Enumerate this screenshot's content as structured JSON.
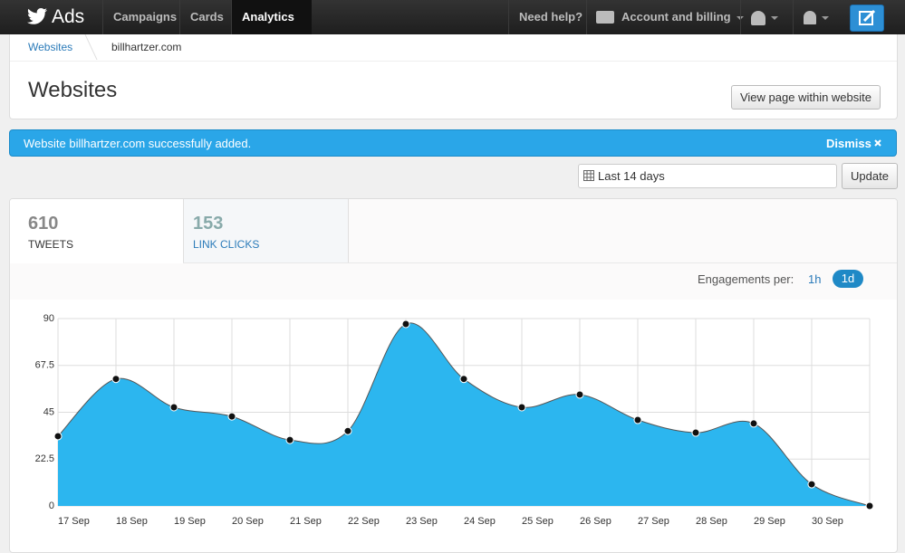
{
  "nav": {
    "brand": "Ads",
    "items": [
      "Campaigns",
      "Cards",
      "Analytics"
    ],
    "help": "Need help?",
    "account": "Account and billing"
  },
  "breadcrumb": [
    "Websites",
    "billhartzer.com"
  ],
  "header": {
    "title": "Websites",
    "button": "View page within website"
  },
  "alert": {
    "message": "Website billhartzer.com successfully added.",
    "dismiss": "Dismiss"
  },
  "date": {
    "range": "Last 14 days",
    "button": "Update"
  },
  "tabs": [
    {
      "value": 610,
      "label": "TWEETS"
    },
    {
      "value": 153,
      "label": "LINK CLICKS"
    }
  ],
  "engagements": {
    "label": "Engagements per:",
    "options": [
      "1h",
      "1d"
    ]
  },
  "chart_data": {
    "type": "area",
    "color": "#2cb6ef",
    "line_color": "#555555",
    "categories": [
      "17 Sep",
      "18 Sep",
      "19 Sep",
      "20 Sep",
      "21 Sep",
      "22 Sep",
      "23 Sep",
      "24 Sep",
      "25 Sep",
      "26 Sep",
      "27 Sep",
      "28 Sep",
      "29 Sep",
      "30 Sep",
      null
    ],
    "values": [
      33.5,
      61,
      47.4,
      43,
      31.7,
      36,
      87.4,
      61,
      47.4,
      53.5,
      41.3,
      35.2,
      39.6,
      10.4,
      0
    ],
    "ylim": [
      0,
      90
    ],
    "yticks": [
      0,
      22.5,
      45,
      67.5,
      90
    ],
    "grid": true
  }
}
